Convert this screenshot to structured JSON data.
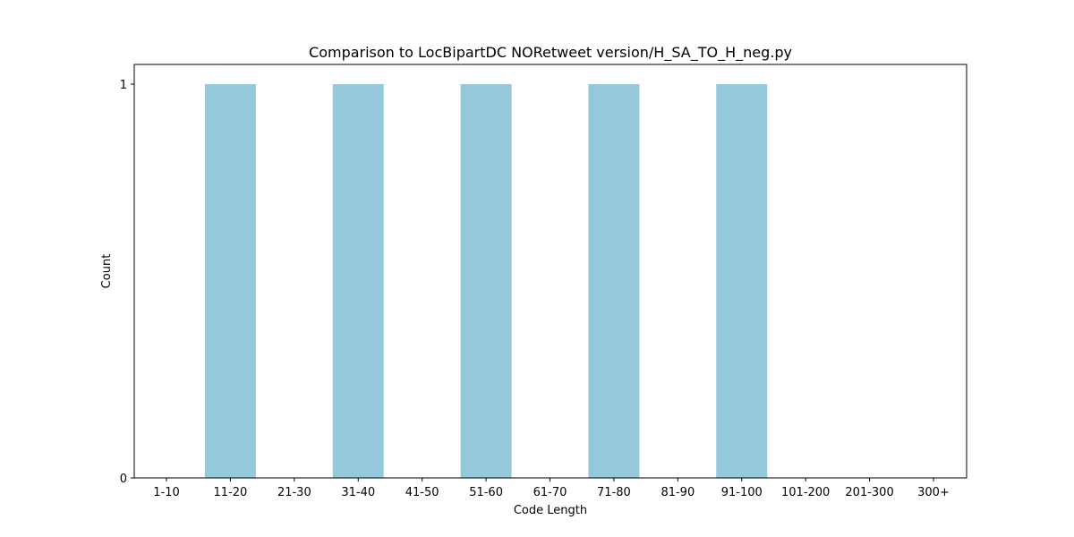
{
  "chart_data": {
    "type": "bar",
    "title": "Comparison to LocBipartDC NORetweet version/H_SA_TO_H_neg.py",
    "xlabel": "Code Length",
    "ylabel": "Count",
    "categories": [
      "1-10",
      "11-20",
      "21-30",
      "31-40",
      "41-50",
      "51-60",
      "61-70",
      "71-80",
      "81-90",
      "91-100",
      "101-200",
      "201-300",
      "300+"
    ],
    "values": [
      0,
      1,
      0,
      1,
      0,
      1,
      0,
      1,
      0,
      1,
      0,
      0,
      0
    ],
    "yticks": [
      0,
      1
    ],
    "ylim": [
      0,
      1.05
    ],
    "bar_color": "#96c8dc",
    "grid": false,
    "legend": "none"
  }
}
